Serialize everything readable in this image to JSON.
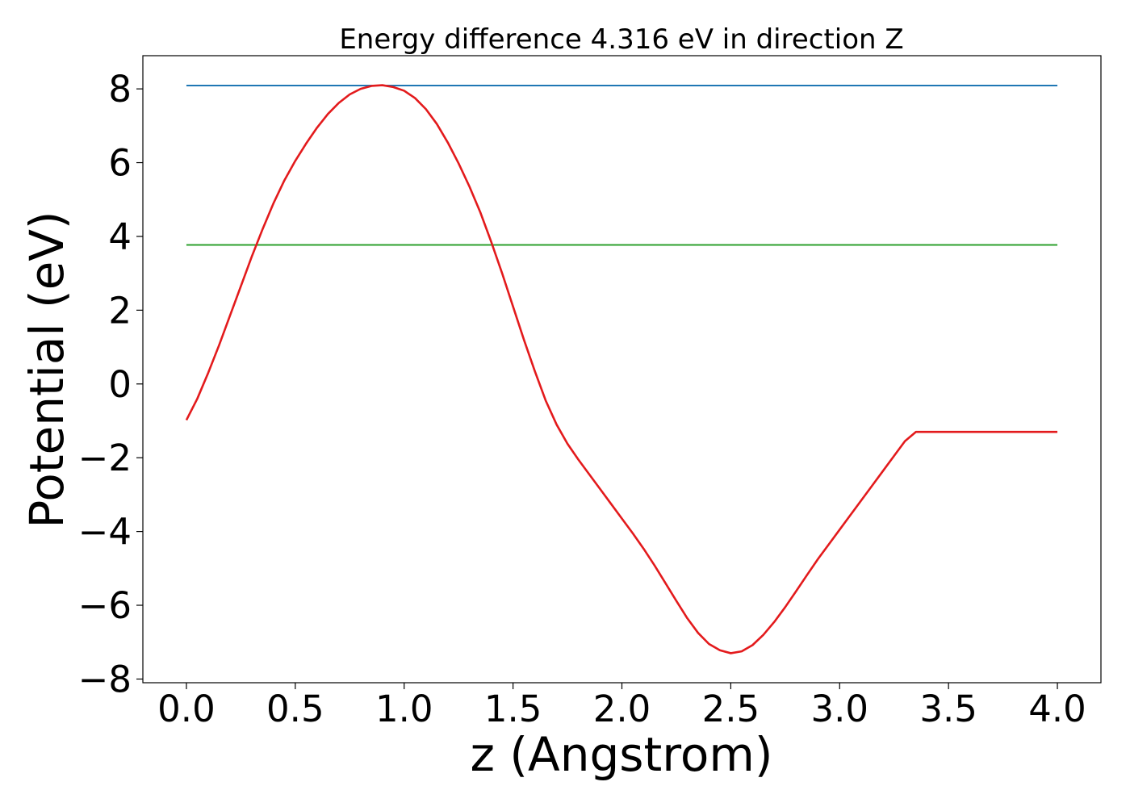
{
  "chart_data": {
    "type": "line",
    "title": "Energy difference 4.316 eV in direction Z",
    "xlabel": "z (Angstrom)",
    "ylabel": "Potential (eV)",
    "xlim": [
      -0.2,
      4.2
    ],
    "ylim": [
      -8.1,
      8.9
    ],
    "grid": false,
    "x_ticks": [
      0.0,
      0.5,
      1.0,
      1.5,
      2.0,
      2.5,
      3.0,
      3.5,
      4.0
    ],
    "x_tick_labels": [
      "0.0",
      "0.5",
      "1.0",
      "1.5",
      "2.0",
      "2.5",
      "3.0",
      "3.5",
      "4.0"
    ],
    "y_ticks": [
      8,
      6,
      4,
      2,
      0,
      -2,
      -4,
      -6,
      -8
    ],
    "y_tick_labels": [
      "8",
      "6",
      "4",
      "2",
      "0",
      "−2",
      "−4",
      "−6",
      "−8"
    ],
    "series": [
      {
        "color": "#1f77b4",
        "kind": "hline",
        "x": [
          0.0,
          4.0
        ],
        "y": [
          8.09,
          8.09
        ]
      },
      {
        "color": "#2ca02c",
        "kind": "hline",
        "x": [
          0.0,
          4.0
        ],
        "y": [
          3.77,
          3.77
        ]
      },
      {
        "color": "#e31a1c",
        "kind": "curve",
        "x": [
          0.0,
          0.05,
          0.1,
          0.15,
          0.2,
          0.25,
          0.3,
          0.35,
          0.4,
          0.45,
          0.5,
          0.55,
          0.6,
          0.65,
          0.7,
          0.75,
          0.8,
          0.85,
          0.9,
          0.95,
          1.0,
          1.05,
          1.1,
          1.15,
          1.2,
          1.25,
          1.3,
          1.35,
          1.4,
          1.45,
          1.5,
          1.55,
          1.6,
          1.65,
          1.7,
          1.75,
          1.8,
          1.85,
          1.9,
          1.95,
          2.0,
          2.05,
          2.1,
          2.15,
          2.2,
          2.25,
          2.3,
          2.35,
          2.4,
          2.45,
          2.5,
          2.55,
          2.6,
          2.65,
          2.7,
          2.75,
          2.8,
          2.85,
          2.9,
          2.95,
          3.0,
          3.05,
          3.1,
          3.15,
          3.2,
          3.25,
          3.3,
          3.35,
          3.4,
          3.45,
          3.5,
          3.55,
          3.6,
          3.65,
          3.7,
          3.75,
          3.8,
          3.85,
          3.9,
          3.95,
          4.0
        ],
        "y": [
          -0.98,
          -0.4,
          0.3,
          1.05,
          1.85,
          2.65,
          3.45,
          4.2,
          4.9,
          5.52,
          6.05,
          6.52,
          6.95,
          7.32,
          7.62,
          7.85,
          8.0,
          8.08,
          8.1,
          8.05,
          7.95,
          7.75,
          7.45,
          7.05,
          6.55,
          5.98,
          5.35,
          4.65,
          3.85,
          3.0,
          2.1,
          1.2,
          0.35,
          -0.45,
          -1.1,
          -1.62,
          -2.05,
          -2.45,
          -2.85,
          -3.25,
          -3.65,
          -4.05,
          -4.47,
          -4.92,
          -5.4,
          -5.88,
          -6.35,
          -6.75,
          -7.05,
          -7.22,
          -7.3,
          -7.25,
          -7.08,
          -6.8,
          -6.45,
          -6.05,
          -5.62,
          -5.18,
          -4.75,
          -4.35,
          -3.95,
          -3.55,
          -3.15,
          -2.75,
          -2.35,
          -1.95,
          -1.55,
          -1.3,
          -1.3,
          -1.3,
          -1.3,
          -1.3,
          -1.3,
          -1.3,
          -1.3,
          -1.3,
          -1.3,
          -1.3,
          -1.3,
          -1.3,
          -1.3
        ]
      }
    ]
  }
}
